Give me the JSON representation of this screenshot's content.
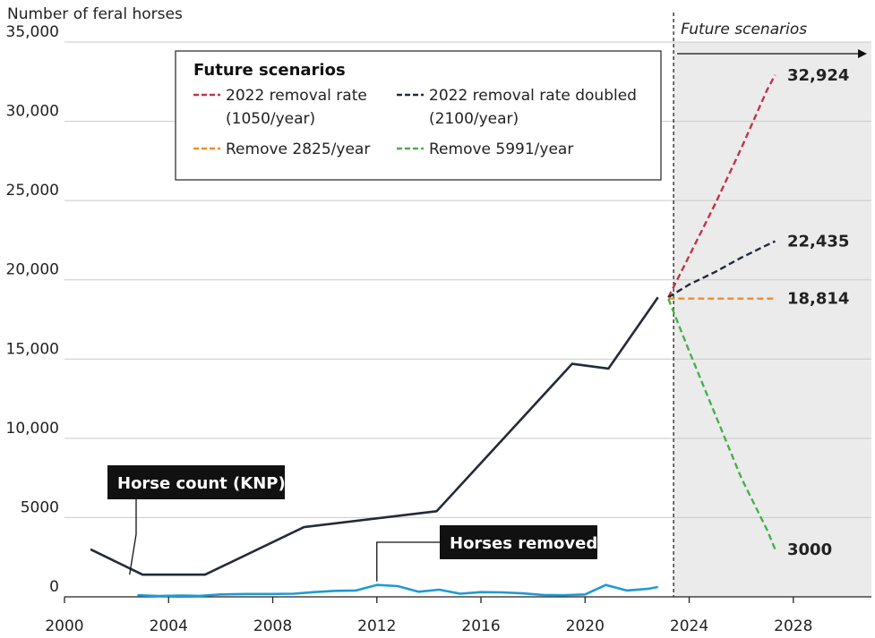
{
  "chart_data": {
    "type": "line",
    "ylabel": "Number of feral horses",
    "ylim": [
      0,
      35000
    ],
    "yticks": [
      0,
      5000,
      10000,
      15000,
      20000,
      25000,
      30000,
      35000
    ],
    "ytick_labels": [
      "0",
      "5000",
      "10,000",
      "15,000",
      "20,000",
      "25,000",
      "30,000",
      "35,000"
    ],
    "xlim": [
      2000,
      2031
    ],
    "xticks": [
      2000,
      2004,
      2008,
      2012,
      2016,
      2020,
      2024,
      2028
    ],
    "xtick_labels": [
      "2000",
      "2004",
      "2008",
      "2012",
      "2016",
      "2020",
      "2024",
      "2028"
    ],
    "grid": true,
    "future_region": {
      "start": 2023.4,
      "label": "Future scenarios"
    },
    "series": [
      {
        "name": "Horse count (KNP)",
        "color": "#232a3d",
        "style": "solid",
        "x": [
          2001,
          2003,
          2005.4,
          2009.2,
          2014.3,
          2019.5,
          2020.9,
          2022.8
        ],
        "y": [
          3000,
          1400,
          1400,
          4400,
          5400,
          14700,
          14400,
          18900
        ]
      },
      {
        "name": "Horses removed",
        "color": "#1f9ad6",
        "style": "solid",
        "x": [
          2002.8,
          2003.6,
          2004.5,
          2005.2,
          2006,
          2007,
          2008,
          2008.8,
          2009.6,
          2010.4,
          2011.2,
          2012,
          2012.8,
          2013.6,
          2014.4,
          2015.2,
          2016,
          2016.8,
          2017.6,
          2018.4,
          2019.2,
          2020,
          2020.8,
          2021.6,
          2022.4,
          2022.8
        ],
        "y": [
          100,
          50,
          80,
          60,
          150,
          180,
          180,
          200,
          300,
          380,
          400,
          750,
          680,
          320,
          450,
          200,
          300,
          280,
          220,
          120,
          100,
          150,
          750,
          400,
          500,
          620
        ]
      },
      {
        "name": "2022 removal rate (1050/year)",
        "color": "#c2344a",
        "style": "dashed",
        "x": [
          2023.2,
          2024,
          2025,
          2026,
          2027,
          2027.3
        ],
        "y": [
          18900,
          21500,
          24800,
          28300,
          32000,
          32924
        ]
      },
      {
        "name": "2022 removal rate doubled (2100/year)",
        "color": "#232a3d",
        "style": "dashed",
        "x": [
          2023.2,
          2024,
          2025,
          2026,
          2027,
          2027.3
        ],
        "y": [
          18900,
          19700,
          20500,
          21400,
          22200,
          22435
        ]
      },
      {
        "name": "Remove 2825/year",
        "color": "#f28c28",
        "style": "dashed",
        "x": [
          2023.2,
          2027.3
        ],
        "y": [
          18814,
          18814
        ]
      },
      {
        "name": "Remove 5991/year",
        "color": "#44b14b",
        "style": "dashed",
        "x": [
          2023.2,
          2024,
          2025,
          2026,
          2027,
          2027.3
        ],
        "y": [
          18800,
          15500,
          11500,
          7500,
          4200,
          3000
        ]
      }
    ],
    "end_labels": [
      {
        "text": "32,924",
        "value": 32924
      },
      {
        "text": "22,435",
        "value": 22435
      },
      {
        "text": "18,814",
        "value": 18814
      },
      {
        "text": "3000",
        "value": 3000
      }
    ],
    "legend": {
      "title": "Future scenarios",
      "items": [
        {
          "line1": "2022 removal rate",
          "line2": "(1050/year)",
          "color": "#c2344a"
        },
        {
          "line1": "2022 removal rate doubled",
          "line2": "(2100/year)",
          "color": "#232a3d"
        },
        {
          "line1": "Remove 2825/year",
          "line2": "",
          "color": "#f28c28"
        },
        {
          "line1": "Remove 5991/year",
          "line2": "",
          "color": "#44b14b"
        }
      ]
    },
    "callouts": [
      {
        "text": "Horse count (KNP)",
        "x": 2002.5,
        "y": 1400
      },
      {
        "text": "Horses removed",
        "x": 2012,
        "y": 750
      }
    ]
  }
}
